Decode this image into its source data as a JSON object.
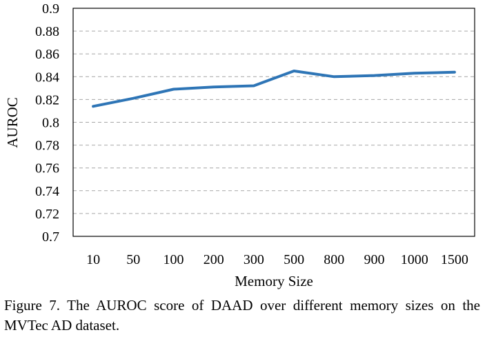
{
  "chart_data": {
    "type": "line",
    "categories": [
      "10",
      "50",
      "100",
      "200",
      "300",
      "500",
      "800",
      "900",
      "1000",
      "1500"
    ],
    "series": [
      {
        "values": [
          0.814,
          0.821,
          0.829,
          0.831,
          0.832,
          0.845,
          0.84,
          0.841,
          0.843,
          0.844
        ]
      }
    ],
    "xlabel": "Memory Size",
    "ylabel": "AUROC",
    "ylim": [
      0.7,
      0.9
    ],
    "yticks": [
      0.7,
      0.72,
      0.74,
      0.76,
      0.78,
      0.8,
      0.82,
      0.84,
      0.86,
      0.88,
      0.9
    ],
    "ytick_labels": [
      "0.7",
      "0.72",
      "0.74",
      "0.76",
      "0.78",
      "0.8",
      "0.82",
      "0.84",
      "0.86",
      "0.88",
      "0.9"
    ],
    "grid": "horizontal dashed",
    "line_color": "#2e75b6"
  },
  "caption": "Figure 7. The AUROC score of DAAD over different memory sizes on the MVTec AD dataset."
}
